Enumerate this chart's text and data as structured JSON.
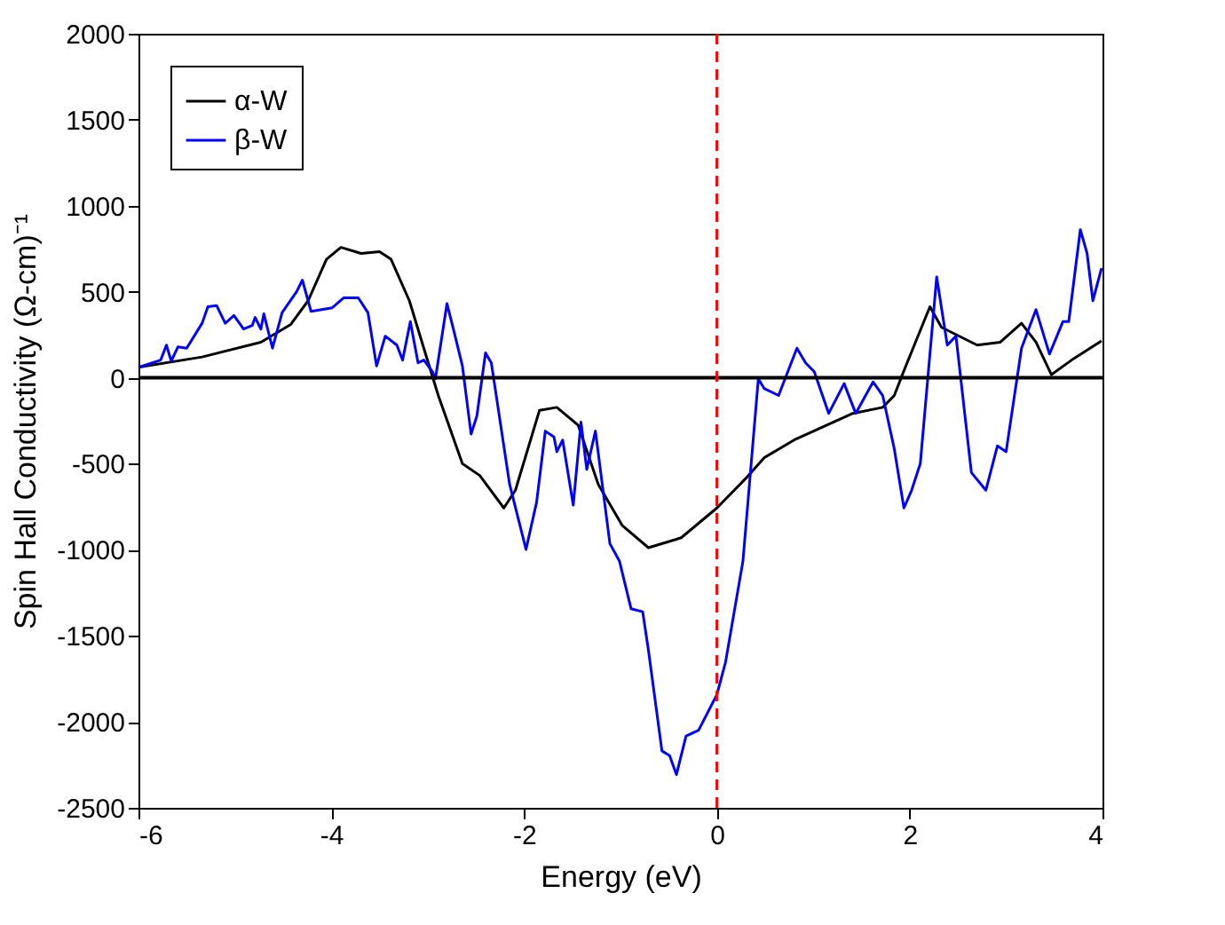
{
  "chart_data": {
    "type": "line",
    "xlabel": "Energy (eV)",
    "ylabel": "Spin Hall Conductivity (Ω-cm)⁻¹",
    "xlim": [
      -6,
      4
    ],
    "xticks": [
      -6,
      -4,
      -2,
      0,
      2,
      4
    ],
    "ylim": [
      -2500,
      2000
    ],
    "yticks": [
      -2500,
      -2000,
      -1500,
      -1000,
      -500,
      0,
      500,
      1000,
      1500,
      2000
    ],
    "grid": false,
    "legend": "top left",
    "line_style": "solid",
    "marker": "none",
    "ref_lines": [
      {
        "axis": "y",
        "value": 0,
        "color": "#000000",
        "line_style": "solid"
      },
      {
        "axis": "x",
        "value": 0,
        "color": "#ff0000",
        "line_style": "dashed"
      }
    ],
    "series": [
      {
        "name": "α-W",
        "color": "#000000",
        "x": [
          -5.99,
          -5.34,
          -4.73,
          -4.42,
          -4.24,
          -4.05,
          -3.9,
          -3.69,
          -3.5,
          -3.38,
          -3.19,
          -3.04,
          -2.89,
          -2.64,
          -2.46,
          -2.21,
          -2.09,
          -1.84,
          -1.66,
          -1.44,
          -1.23,
          -0.98,
          -0.71,
          -0.37,
          0,
          0.3,
          0.49,
          0.8,
          1.41,
          1.72,
          1.84,
          1.96,
          2.21,
          2.33,
          2.7,
          2.94,
          3.16,
          3.31,
          3.47,
          3.68,
          3.99
        ],
        "values": [
          62,
          121,
          207,
          310,
          448,
          689,
          758,
          723,
          733,
          689,
          448,
          172,
          -103,
          -499,
          -568,
          -757,
          -654,
          -189,
          -172,
          -275,
          -620,
          -860,
          -988,
          -930,
          -757,
          -585,
          -465,
          -362,
          -207,
          -172,
          -103,
          69,
          413,
          293,
          190,
          207,
          317,
          207,
          18,
          103,
          214
        ]
      },
      {
        "name": "β-W",
        "color": "#0000ff",
        "x": [
          -5.99,
          -5.77,
          -5.71,
          -5.66,
          -5.59,
          -5.5,
          -5.34,
          -5.28,
          -5.19,
          -5.1,
          -5.01,
          -4.91,
          -4.82,
          -4.79,
          -4.73,
          -4.7,
          -4.61,
          -4.51,
          -4.36,
          -4.3,
          -4.21,
          -3.99,
          -3.87,
          -3.72,
          -3.62,
          -3.53,
          -3.44,
          -3.32,
          -3.26,
          -3.18,
          -3.1,
          -3.04,
          -2.95,
          -2.92,
          -2.8,
          -2.73,
          -2.64,
          -2.55,
          -2.49,
          -2.4,
          -2.34,
          -2.15,
          -1.98,
          -1.87,
          -1.78,
          -1.69,
          -1.66,
          -1.6,
          -1.49,
          -1.41,
          -1.35,
          -1.26,
          -1.11,
          -1.01,
          -0.89,
          -0.77,
          -0.71,
          -0.57,
          -0.49,
          -0.42,
          -0.32,
          -0.19,
          0,
          0.09,
          0.27,
          0.43,
          0.49,
          0.64,
          0.83,
          0.92,
          1.01,
          1.16,
          1.32,
          1.44,
          1.62,
          1.72,
          1.84,
          1.94,
          2.02,
          2.11,
          2.28,
          2.39,
          2.48,
          2.64,
          2.79,
          2.91,
          3,
          3.16,
          3.31,
          3.45,
          3.59,
          3.65,
          3.77,
          3.84,
          3.9,
          3.99
        ],
        "values": [
          62,
          103,
          190,
          97,
          180,
          172,
          317,
          413,
          420,
          317,
          362,
          283,
          304,
          351,
          283,
          372,
          172,
          379,
          500,
          568,
          386,
          407,
          465,
          465,
          379,
          69,
          242,
          190,
          103,
          327,
          87,
          103,
          35,
          -6,
          431,
          276,
          69,
          -327,
          -223,
          145,
          87,
          -620,
          -998,
          -723,
          -310,
          -344,
          -430,
          -362,
          -740,
          -258,
          -533,
          -310,
          -964,
          -1067,
          -1343,
          -1360,
          -1584,
          -2169,
          -2197,
          -2307,
          -2083,
          -2049,
          -1842,
          -1653,
          -1067,
          -6,
          -62,
          -103,
          172,
          87,
          35,
          -207,
          -34,
          -207,
          -24,
          -103,
          -413,
          -757,
          -654,
          -499,
          586,
          190,
          242,
          -551,
          -654,
          -396,
          -430,
          172,
          396,
          138,
          327,
          327,
          861,
          723,
          448,
          637
        ]
      }
    ]
  }
}
